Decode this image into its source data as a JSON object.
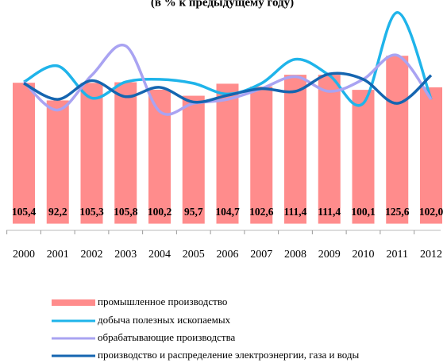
{
  "chart_data": {
    "type": "bar",
    "title": "(в % к предыдущему году)",
    "categories": [
      "2000",
      "2001",
      "2002",
      "2003",
      "2004",
      "2005",
      "2006",
      "2007",
      "2008",
      "2009",
      "2010",
      "2011",
      "2012"
    ],
    "bar_series": {
      "name": "промышленное производство",
      "color": "#ff8c8c",
      "values": [
        105.4,
        92.2,
        105.3,
        105.8,
        100.2,
        95.7,
        104.7,
        102.6,
        111.4,
        111.4,
        100.1,
        125.6,
        102.0
      ],
      "value_labels": [
        "105,4",
        "92,2",
        "105,3",
        "105,8",
        "100,2",
        "95,7",
        "104,7",
        "102,6",
        "111,4",
        "111,4",
        "100,1",
        "125,6",
        "102,0"
      ]
    },
    "series": [
      {
        "name": "добыча полезных ископаемых",
        "color": "#1fb4ea",
        "values": [
          106,
          118,
          94,
          106,
          108,
          105,
          97,
          105,
          123,
          111,
          90,
          158,
          93
        ]
      },
      {
        "name": "обрабатывающие производства",
        "color": "#a9a3f2",
        "values": [
          106,
          85,
          111,
          133,
          84,
          90,
          93,
          101,
          110,
          99,
          108,
          126,
          93
        ]
      },
      {
        "name": "производство и распределение электроэнергии, газа и воды",
        "color": "#1565b0",
        "values": [
          105,
          93,
          107,
          95,
          102,
          91,
          96,
          101,
          99,
          112,
          108,
          90,
          111
        ]
      }
    ],
    "ylim": [
      -5,
      170
    ]
  }
}
